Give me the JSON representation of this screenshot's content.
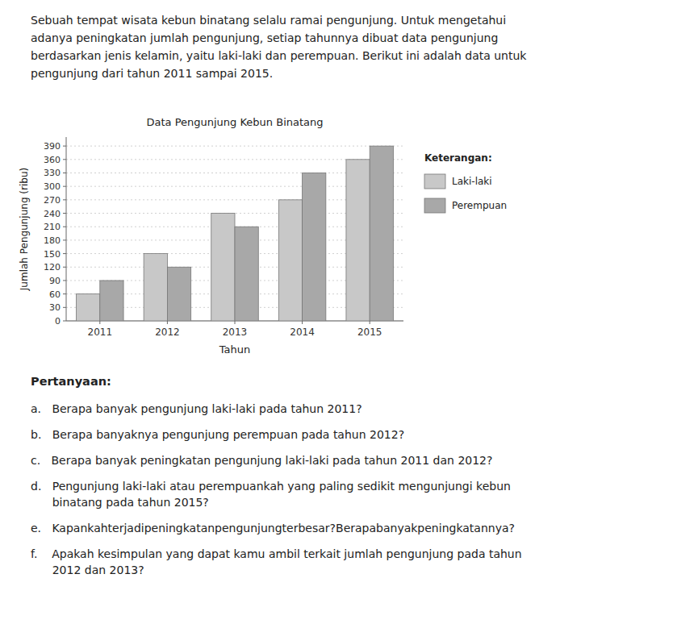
{
  "chart_data": {
    "type": "bar",
    "title": "Data Pengunjung Kebun Binatang",
    "categories": [
      "2011",
      "2012",
      "2013",
      "2014",
      "2015"
    ],
    "series": [
      {
        "name": "Laki-laki",
        "color": "#c8c8c8",
        "values": [
          60,
          150,
          240,
          270,
          360
        ]
      },
      {
        "name": "Perempuan",
        "color": "#a8a8a8",
        "values": [
          90,
          120,
          210,
          330,
          390
        ]
      }
    ],
    "xlabel": "Tahun",
    "ylabel": "Jumlah Pengunjung (ribu)",
    "ylim": [
      0,
      410
    ],
    "yticks": [
      0,
      30,
      60,
      90,
      120,
      150,
      180,
      210,
      240,
      270,
      300,
      330,
      360,
      390
    ],
    "grid": true,
    "legend": "right",
    "legend_title": "Keterangan:",
    "intro": [
      "Sebuah tempat wisata kebun binatang selalu ramai pengunjung. Untuk mengetahui",
      "adanya peningkatan jumlah pengunjung, setiap tahunnya dibuat data pengunjung",
      "berdasarkan jenis kelamin, yaitu laki-laki dan perempuan. Berikut ini adalah data untuk",
      "pengunjung dari tahun 2011 sampai 2015."
    ],
    "questions_title": "Pertanyaan:",
    "questions": [
      [
        "a.   Berapa banyak pengunjung laki-laki pada tahun 2011?"
      ],
      [
        "b.   Berapa banyaknya pengunjung perempuan pada tahun 2012?"
      ],
      [
        "c.   Berapa banyak peningkatan pengunjung laki-laki pada tahun 2011 dan 2012?"
      ],
      [
        "d.   Pengunjung laki-laki atau perempuankah yang paling sedikit mengunjungi kebun",
        "      binatang pada tahun 2015?"
      ],
      [
        "e.   Kapankahterjadipeningkatanpengunjungterbesar?Berapabanyakpeningkatannya?"
      ],
      [
        "f.    Apakah kesimpulan yang dapat kamu ambil terkait jumlah pengunjung pada tahun",
        "      2012 dan 2013?"
      ]
    ]
  }
}
